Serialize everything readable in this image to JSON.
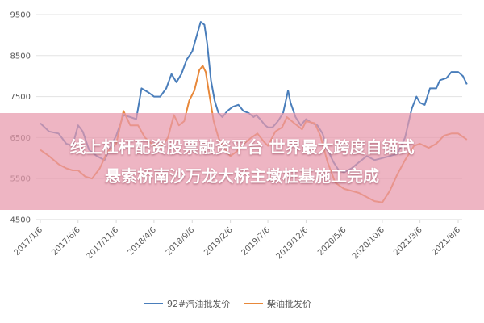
{
  "chart_data": {
    "type": "line",
    "title": "",
    "xlabel": "",
    "ylabel": "",
    "ylim": [
      4500,
      9500
    ],
    "yticks": [
      4500,
      5500,
      6500,
      7500,
      8500,
      9500
    ],
    "x_tick_labels": [
      "2017/1/6",
      "2017/6/6",
      "2017/11/6",
      "2018/4/6",
      "2018/9/6",
      "2019/2/6",
      "2019/7/6",
      "2019/12/6",
      "2020/5/6",
      "2020/10/6",
      "2021/3/6",
      "2021/8/6"
    ],
    "grid": "horizontal",
    "legend": "bottom",
    "series": [
      {
        "name": "92#汽油批发价",
        "color": "#4a7ebb",
        "points": [
          [
            "2017-01-06",
            6850
          ],
          [
            "2017-02-10",
            6650
          ],
          [
            "2017-03-20",
            6600
          ],
          [
            "2017-04-20",
            6350
          ],
          [
            "2017-05-15",
            6300
          ],
          [
            "2017-06-06",
            6800
          ],
          [
            "2017-06-25",
            6650
          ],
          [
            "2017-07-20",
            6200
          ],
          [
            "2017-08-20",
            6050
          ],
          [
            "2017-09-20",
            5950
          ],
          [
            "2017-10-20",
            6350
          ],
          [
            "2017-11-06",
            6550
          ],
          [
            "2017-12-05",
            7050
          ],
          [
            "2018-01-01",
            7000
          ],
          [
            "2018-01-25",
            6950
          ],
          [
            "2018-02-15",
            7700
          ],
          [
            "2018-03-15",
            7600
          ],
          [
            "2018-04-06",
            7500
          ],
          [
            "2018-05-01",
            7500
          ],
          [
            "2018-05-25",
            7700
          ],
          [
            "2018-06-15",
            8050
          ],
          [
            "2018-07-05",
            7850
          ],
          [
            "2018-07-25",
            8050
          ],
          [
            "2018-08-15",
            8400
          ],
          [
            "2018-09-06",
            8600
          ],
          [
            "2018-09-25",
            9000
          ],
          [
            "2018-10-10",
            9320
          ],
          [
            "2018-10-25",
            9250
          ],
          [
            "2018-11-05",
            8800
          ],
          [
            "2018-11-20",
            7900
          ],
          [
            "2018-12-05",
            7400
          ],
          [
            "2018-12-20",
            7100
          ],
          [
            "2019-01-05",
            7000
          ],
          [
            "2019-01-25",
            7150
          ],
          [
            "2019-02-15",
            7250
          ],
          [
            "2019-03-10",
            7300
          ],
          [
            "2019-03-30",
            7150
          ],
          [
            "2019-04-20",
            7100
          ],
          [
            "2019-05-10",
            7000
          ],
          [
            "2019-05-20",
            7050
          ],
          [
            "2019-06-05",
            6950
          ],
          [
            "2019-06-25",
            6800
          ],
          [
            "2019-07-06",
            6750
          ],
          [
            "2019-07-25",
            6750
          ],
          [
            "2019-08-15",
            6900
          ],
          [
            "2019-09-05",
            7100
          ],
          [
            "2019-09-25",
            7650
          ],
          [
            "2019-10-05",
            7350
          ],
          [
            "2019-10-25",
            7000
          ],
          [
            "2019-11-15",
            6800
          ],
          [
            "2019-12-06",
            6950
          ],
          [
            "2019-12-30",
            6850
          ],
          [
            "2020-01-20",
            6800
          ],
          [
            "2020-02-10",
            6600
          ],
          [
            "2020-03-01",
            6200
          ],
          [
            "2020-03-25",
            5900
          ],
          [
            "2020-04-15",
            5700
          ],
          [
            "2020-05-06",
            5650
          ],
          [
            "2020-06-05",
            5750
          ],
          [
            "2020-07-05",
            5900
          ],
          [
            "2020-08-05",
            6050
          ],
          [
            "2020-09-05",
            5950
          ],
          [
            "2020-10-06",
            6000
          ],
          [
            "2020-11-05",
            6050
          ],
          [
            "2020-12-05",
            6100
          ],
          [
            "2021-01-05",
            6500
          ],
          [
            "2021-02-01",
            7200
          ],
          [
            "2021-02-20",
            7500
          ],
          [
            "2021-03-06",
            7350
          ],
          [
            "2021-03-25",
            7300
          ],
          [
            "2021-04-15",
            7700
          ],
          [
            "2021-05-10",
            7700
          ],
          [
            "2021-05-25",
            7900
          ],
          [
            "2021-06-20",
            7950
          ],
          [
            "2021-07-10",
            8100
          ],
          [
            "2021-08-06",
            8100
          ],
          [
            "2021-08-25",
            8000
          ],
          [
            "2021-09-10",
            7800
          ]
        ]
      },
      {
        "name": "柴油批发价",
        "color": "#e8883a",
        "points": [
          [
            "2017-01-06",
            6200
          ],
          [
            "2017-02-10",
            6050
          ],
          [
            "2017-03-20",
            5850
          ],
          [
            "2017-04-20",
            5750
          ],
          [
            "2017-05-15",
            5700
          ],
          [
            "2017-06-06",
            5700
          ],
          [
            "2017-07-05",
            5550
          ],
          [
            "2017-08-01",
            5500
          ],
          [
            "2017-09-01",
            5750
          ],
          [
            "2017-10-01",
            6150
          ],
          [
            "2017-11-06",
            6350
          ],
          [
            "2017-12-05",
            7150
          ],
          [
            "2018-01-01",
            6800
          ],
          [
            "2018-02-01",
            6800
          ],
          [
            "2018-03-01",
            6500
          ],
          [
            "2018-04-06",
            6300
          ],
          [
            "2018-05-01",
            6250
          ],
          [
            "2018-06-01",
            6500
          ],
          [
            "2018-06-25",
            7050
          ],
          [
            "2018-07-15",
            6800
          ],
          [
            "2018-08-05",
            6900
          ],
          [
            "2018-08-25",
            7400
          ],
          [
            "2018-09-15",
            7650
          ],
          [
            "2018-10-05",
            8150
          ],
          [
            "2018-10-18",
            8250
          ],
          [
            "2018-10-30",
            8100
          ],
          [
            "2018-11-15",
            7500
          ],
          [
            "2018-12-01",
            6900
          ],
          [
            "2018-12-20",
            6500
          ],
          [
            "2019-01-10",
            6250
          ],
          [
            "2019-02-06",
            6050
          ],
          [
            "2019-03-01",
            6150
          ],
          [
            "2019-04-01",
            6350
          ],
          [
            "2019-05-01",
            6500
          ],
          [
            "2019-05-25",
            6600
          ],
          [
            "2019-06-20",
            6400
          ],
          [
            "2019-07-06",
            6300
          ],
          [
            "2019-08-05",
            6650
          ],
          [
            "2019-09-01",
            6750
          ],
          [
            "2019-09-20",
            7000
          ],
          [
            "2019-10-20",
            6850
          ],
          [
            "2019-11-20",
            6700
          ],
          [
            "2019-12-06",
            6900
          ],
          [
            "2020-01-10",
            6850
          ],
          [
            "2020-02-01",
            6550
          ],
          [
            "2020-03-01",
            5900
          ],
          [
            "2020-04-01",
            5400
          ],
          [
            "2020-05-06",
            5250
          ],
          [
            "2020-06-05",
            5200
          ],
          [
            "2020-07-05",
            5150
          ],
          [
            "2020-08-05",
            5050
          ],
          [
            "2020-09-05",
            4950
          ],
          [
            "2020-10-06",
            4920
          ],
          [
            "2020-11-05",
            5200
          ],
          [
            "2020-12-05",
            5600
          ],
          [
            "2021-01-05",
            5950
          ],
          [
            "2021-02-10",
            6300
          ],
          [
            "2021-03-06",
            6350
          ],
          [
            "2021-04-10",
            6250
          ],
          [
            "2021-05-10",
            6350
          ],
          [
            "2021-06-10",
            6550
          ],
          [
            "2021-07-10",
            6600
          ],
          [
            "2021-08-06",
            6600
          ],
          [
            "2021-09-10",
            6450
          ]
        ]
      }
    ]
  },
  "banner": {
    "line1": "线上杠杆配资股票融资平台 世界最大跨度自锚式",
    "line2": "悬索桥南沙万龙大桥主墩桩基施工完成"
  }
}
